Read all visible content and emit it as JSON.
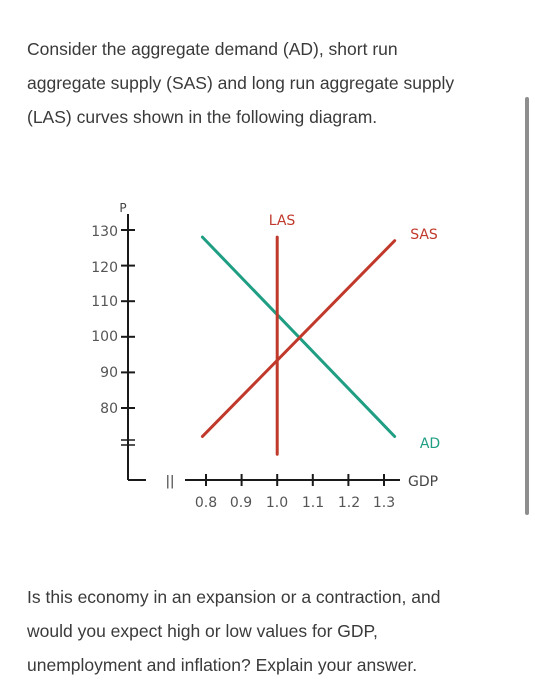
{
  "question": {
    "intro_lines": [
      "Consider the aggregate demand (AD), short run",
      "aggregate supply (SAS) and long run aggregate supply",
      "(LAS) curves shown in the following diagram."
    ],
    "prompt_lines": [
      "Is this economy in an expansion or a contraction, and",
      "would you expect high or low values for GDP,",
      "unemployment and inflation? Explain your answer."
    ]
  },
  "chart_data": {
    "type": "line",
    "xlabel": "GDP",
    "ylabel": "P",
    "x_ticks": [
      "0.8",
      "0.9",
      "1.0",
      "1.1",
      "1.2",
      "1.3"
    ],
    "y_ticks": [
      "130",
      "120",
      "110",
      "100",
      "90",
      "80"
    ],
    "axis_break_symbol": "||",
    "series": [
      {
        "name": "AD",
        "color": "#1f9e84",
        "points": [
          [
            0.79,
            128
          ],
          [
            1.33,
            72
          ]
        ]
      },
      {
        "name": "SAS",
        "color": "#c0392b",
        "points": [
          [
            0.79,
            72
          ],
          [
            1.33,
            127
          ]
        ]
      },
      {
        "name": "LAS",
        "color": "#c0392b",
        "points": [
          [
            1.0,
            128
          ],
          [
            1.0,
            67
          ]
        ]
      }
    ],
    "labels": {
      "LAS": "LAS",
      "SAS": "SAS",
      "AD": "AD"
    }
  }
}
